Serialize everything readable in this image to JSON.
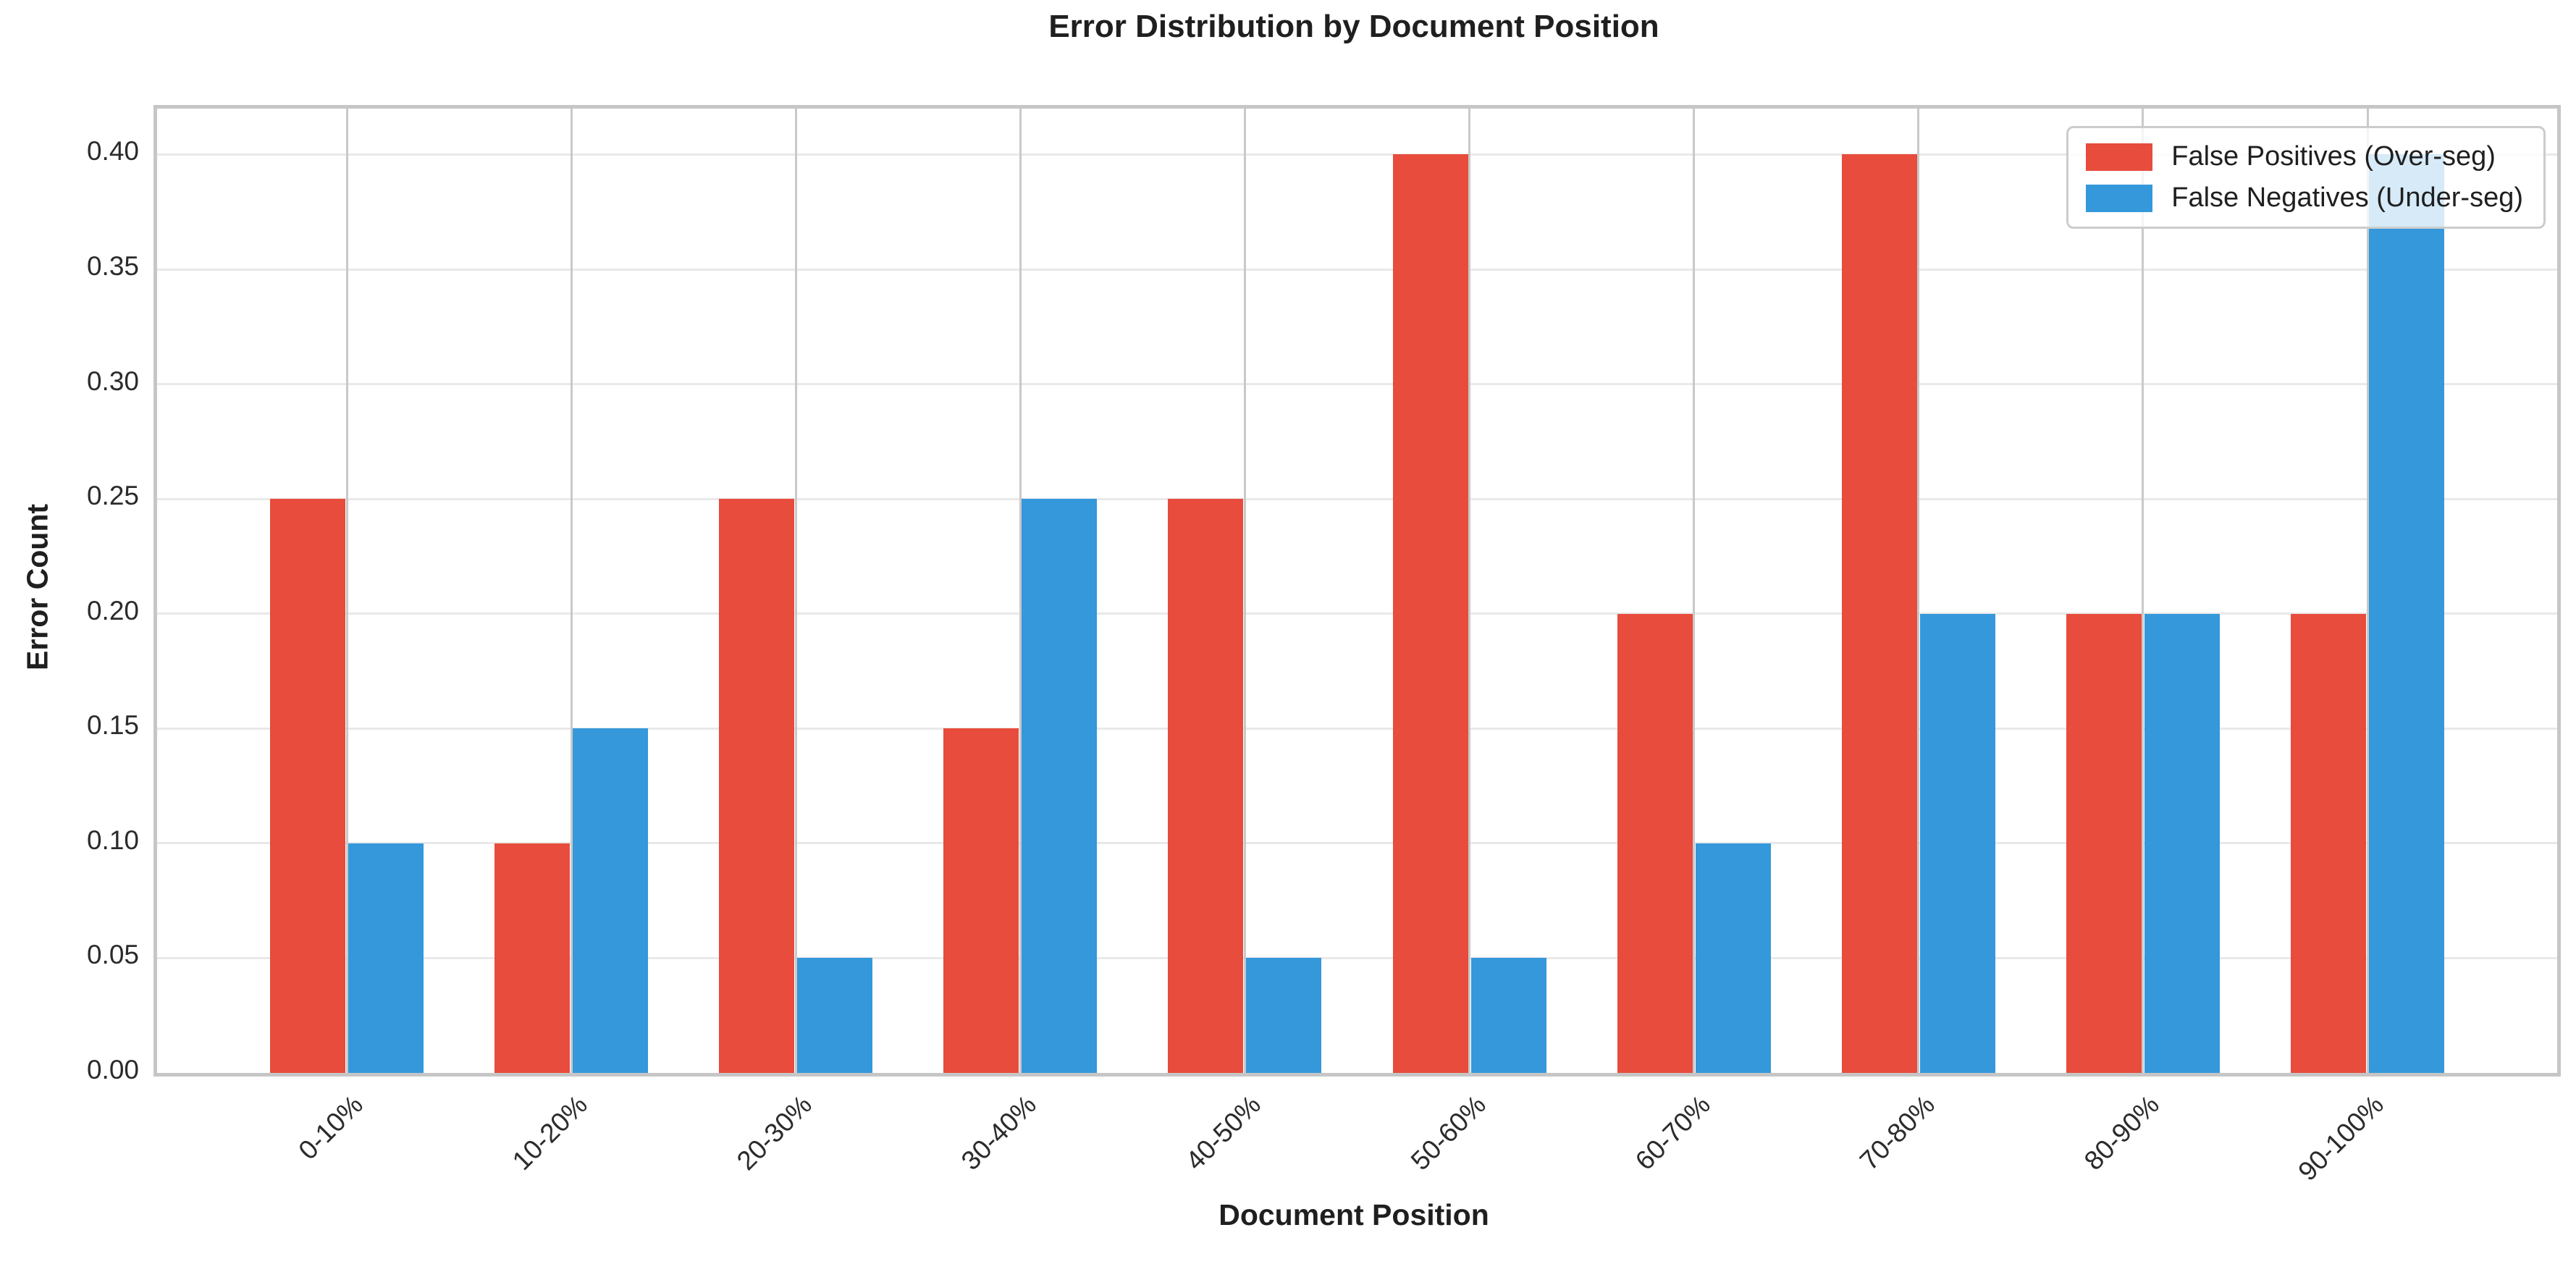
{
  "chart_data": {
    "type": "bar",
    "title": "Error Distribution by Document Position",
    "xlabel": "Document Position",
    "ylabel": "Error Count",
    "categories": [
      "0-10%",
      "10-20%",
      "20-30%",
      "30-40%",
      "40-50%",
      "50-60%",
      "60-70%",
      "70-80%",
      "80-90%",
      "90-100%"
    ],
    "series": [
      {
        "name": "False Positives (Over-seg)",
        "color": "#e74c3c",
        "values": [
          0.25,
          0.1,
          0.25,
          0.15,
          0.25,
          0.4,
          0.2,
          0.4,
          0.2,
          0.2
        ]
      },
      {
        "name": "False Negatives (Under-seg)",
        "color": "#3498db",
        "values": [
          0.1,
          0.15,
          0.05,
          0.25,
          0.05,
          0.05,
          0.1,
          0.2,
          0.2,
          0.4
        ]
      }
    ],
    "ylim": [
      0,
      0.42
    ],
    "ytick_labels": [
      "0.00",
      "0.05",
      "0.10",
      "0.15",
      "0.20",
      "0.25",
      "0.30",
      "0.35",
      "0.40"
    ],
    "yticks": [
      0.0,
      0.05,
      0.1,
      0.15,
      0.2,
      0.25,
      0.3,
      0.35,
      0.4
    ],
    "bar_width": 0.35,
    "grid": true,
    "legend_position": "upper right",
    "colors": {
      "false_positives": "#e74c3c",
      "false_negatives": "#3498db",
      "grid_horizontal": "#e9e9e9",
      "grid_vertical": "#c9c9c9",
      "spine": "#c6c6c6",
      "text": "#1f1f1f",
      "background": "#ffffff"
    }
  }
}
